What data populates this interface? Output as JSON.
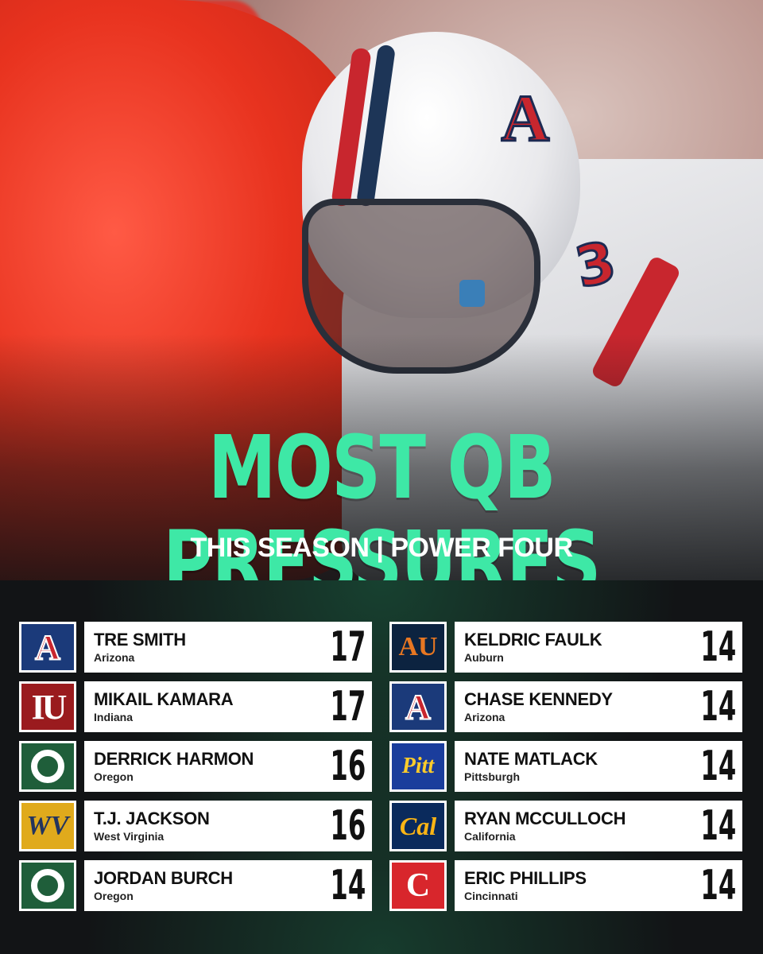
{
  "header": {
    "title": "MOST QB PRESSURES",
    "subtitle": "THIS SEASON | POWER FOUR"
  },
  "hero": {
    "jersey_number": "3",
    "helmet_logo": "A"
  },
  "left_column": [
    {
      "name": "TRE SMITH",
      "school": "Arizona",
      "value": "17",
      "logo_icon": "arizona-logo-icon",
      "logo_glyph": "A"
    },
    {
      "name": "MIKAIL KAMARA",
      "school": "Indiana",
      "value": "17",
      "logo_icon": "indiana-logo-icon",
      "logo_glyph": "IU"
    },
    {
      "name": "DERRICK HARMON",
      "school": "Oregon",
      "value": "16",
      "logo_icon": "oregon-logo-icon",
      "logo_glyph": ""
    },
    {
      "name": "T.J. JACKSON",
      "school": "West Virginia",
      "value": "16",
      "logo_icon": "wvu-logo-icon",
      "logo_glyph": "WV"
    },
    {
      "name": "JORDAN BURCH",
      "school": "Oregon",
      "value": "14",
      "logo_icon": "oregon-logo-icon",
      "logo_glyph": ""
    }
  ],
  "right_column": [
    {
      "name": "KELDRIC FAULK",
      "school": "Auburn",
      "value": "14",
      "logo_icon": "auburn-logo-icon",
      "logo_glyph": "AU"
    },
    {
      "name": "CHASE KENNEDY",
      "school": "Arizona",
      "value": "14",
      "logo_icon": "arizona-logo-icon",
      "logo_glyph": "A"
    },
    {
      "name": "NATE MATLACK",
      "school": "Pittsburgh",
      "value": "14",
      "logo_icon": "pitt-logo-icon",
      "logo_glyph": "Pitt"
    },
    {
      "name": "RYAN MCCULLOCH",
      "school": "California",
      "value": "14",
      "logo_icon": "cal-logo-icon",
      "logo_glyph": "Cal"
    },
    {
      "name": "ERIC PHILLIPS",
      "school": "Cincinnati",
      "value": "14",
      "logo_icon": "cincinnati-logo-icon",
      "logo_glyph": "C"
    }
  ],
  "colors": {
    "title": "#3ee8a6",
    "board_bg": "#121416",
    "arizona": "#1b3a7a",
    "indiana": "#9a1b1e",
    "oregon": "#1f5e3a",
    "wvu": "#e0aa1c",
    "auburn": "#0c2340",
    "pitt": "#1a3d9c",
    "cal": "#0a2a5c",
    "cincinnati": "#d8262c"
  }
}
